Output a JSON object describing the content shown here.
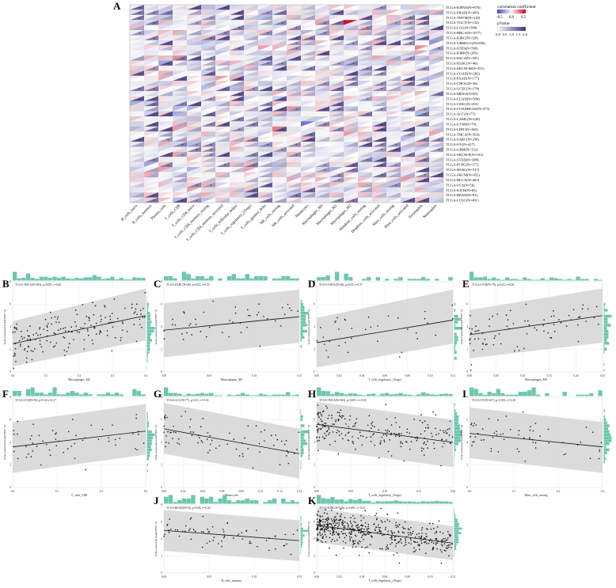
{
  "figure": {
    "panel_labels": [
      "A",
      "B",
      "C",
      "D",
      "E",
      "F",
      "G",
      "H",
      "I",
      "J",
      "K"
    ]
  },
  "chart_data": [
    {
      "type": "heatmap",
      "panel": "A",
      "row_labels": [
        "TCGA-KIPAN(N=878)",
        "TCGA-PRAD(N=495)",
        "TCGA-THYM(N=118)",
        "TCGA-TGCT(N=132)",
        "TCGA-LGG(N=508)",
        "TCGA-BRCA(N=1077)",
        "TCGA-KIRC(N=528)",
        "TCGA-GBMLGG(N=656)",
        "TCGA-STES(N=569)",
        "TCGA-KIRP(N=285)",
        "TCGA-ESCA(N=181)",
        "TCGA-DLBC(N=46)",
        "TCGA-SKCM-M(N=351)",
        "TCGA-COAD(N=282)",
        "TCGA-PAAD(N=177)",
        "TCGA-CHOL(N=36)",
        "TCGA-UCEC(N=178)",
        "TCGA-MESO(N=85)",
        "TCGA-LUAD(N=500)",
        "TCGA-CESC(N=291)",
        "TCGA-COADREAD(N=373)",
        "TCGA-ACC(N=77)",
        "TCGA-LAML(N=149)",
        "TCGA-UVM(N=79)",
        "TCGA-LIHC(N=363)",
        "TCGA-THCA(N=503)",
        "TCGA-SARC(N=258)",
        "TCGA-OV(N=417)",
        "TCGA-GBM(N=152)",
        "TCGA-SKCM-P(N=101)",
        "TCGA-STAD(N=388)",
        "TCGA-PCPG(N=177)",
        "TCGA-HNSC(N=517)",
        "TCGA-SKCM(N=452)",
        "TCGA-BLCA(N=405)",
        "TCGA-UCS(N=56)",
        "TCGA-KICH(N=65)",
        "TCGA-READ(N=91)",
        "TCGA-LUSC(N=491)"
      ],
      "column_labels": [
        "B_cells_naive",
        "B_cells_memory",
        "Plasma_cells",
        "T_cells_CD8",
        "T_cells_CD4_naive",
        "T_cells_CD4_memory_resting",
        "T_cells_CD4_memory_activated",
        "T_cells_follicular_helper",
        "T_cells_regulatory_(Tregs)",
        "T_cells_gamma_delta",
        "NK_cells_resting",
        "NK_cells_activated",
        "Monocytes",
        "Macrophages_M0",
        "Macrophages_M1",
        "Macrophages_M2",
        "Dendritic_cells_resting",
        "Dendritic_cells_activated",
        "Mast_cells_resting",
        "Mast_cells_activated",
        "Eosinophils",
        "Neutrophils"
      ],
      "legend": {
        "color_title": "correlation coefficient",
        "color_ticks": [
          "-0.5",
          "0.0",
          "0.5"
        ],
        "size_title": "pValue",
        "size_ticks": [
          "0.0",
          "0.5",
          "1.0",
          "1.5",
          "2.0"
        ]
      },
      "significance_mark": "*",
      "colors": {
        "negative": "#3b4cc0",
        "zero": "#f7f7f7",
        "positive": "#d9001b",
        "pvalue": "#3a2d7a"
      }
    },
    {
      "type": "scatter",
      "panel": "B",
      "title": "TCGA-THCA(N=503), p<0.001, r=0.40",
      "xlabel": "Macrophages_M2",
      "ylabel": "Gene expression (log2(TPM+1))",
      "xlim": [
        0,
        0.4
      ],
      "ylim": [
        0,
        8
      ],
      "xticks": [
        "0.0",
        "0.1",
        "0.2",
        "0.3",
        "0.4"
      ],
      "yticks": [
        "0",
        "2",
        "4",
        "6",
        "8"
      ],
      "fit": {
        "x": [
          0,
          0.4
        ],
        "y": [
          2.5,
          5.0
        ]
      },
      "band": {
        "x": [
          0,
          0.4
        ],
        "lower": [
          0.5,
          2.8
        ],
        "upper": [
          4.5,
          7.4
        ]
      },
      "n_points": 170
    },
    {
      "type": "scatter",
      "panel": "C",
      "title": "TCGA-DLBC(N=46), p=0.02, r=0.35",
      "xlabel": "Macrophages_M1",
      "ylabel": "Gene expression (log2(TPM+1))",
      "xlim": [
        0,
        0.15
      ],
      "ylim": [
        0,
        8
      ],
      "xticks": [
        "0.00",
        "0.05",
        "0.10",
        "0.15"
      ],
      "yticks": [
        "0",
        "2",
        "4",
        "6",
        "8"
      ],
      "fit": {
        "x": [
          0,
          0.15
        ],
        "y": [
          3.7,
          4.9
        ]
      },
      "band": {
        "x": [
          0,
          0.15
        ],
        "lower": [
          1.3,
          2.6
        ],
        "upper": [
          6.1,
          7.3
        ]
      },
      "n_points": 46
    },
    {
      "type": "scatter",
      "panel": "D",
      "title": "TCGA-CHOL(N=36), p=0.03, r=0.37",
      "xlabel": "T_cells_regulatory_(Tregs)",
      "ylabel": "Gene expression (log2(TPM+1))",
      "xlim": [
        0,
        0.12
      ],
      "ylim": [
        0,
        8
      ],
      "xticks": [
        "0.00",
        "0.02",
        "0.04",
        "0.06",
        "0.08",
        "0.10",
        "0.12"
      ],
      "yticks": [
        "0",
        "2",
        "4",
        "6",
        "8"
      ],
      "fit": {
        "x": [
          0,
          0.12
        ],
        "y": [
          2.6,
          4.6
        ]
      },
      "band": {
        "x": [
          0,
          0.12
        ],
        "lower": [
          0.4,
          2.5
        ],
        "upper": [
          4.8,
          7.3
        ]
      },
      "n_points": 36
    },
    {
      "type": "scatter",
      "panel": "E",
      "title": "TCGA-UVM(N=79), p=0.02, r=0.26",
      "xlabel": "Macrophages_M0",
      "ylabel": "Gene expression (log2(TPM+1))",
      "xlim": [
        0,
        0.25
      ],
      "ylim": [
        0,
        8
      ],
      "xticks": [
        "0.00",
        "0.05",
        "0.10",
        "0.15",
        "0.20",
        "0.25"
      ],
      "yticks": [
        "0",
        "2",
        "4",
        "6",
        "8"
      ],
      "fit": {
        "x": [
          0,
          0.25
        ],
        "y": [
          3.3,
          5.0
        ]
      },
      "band": {
        "x": [
          0,
          0.25
        ],
        "lower": [
          1.2,
          2.6
        ],
        "upper": [
          5.5,
          7.4
        ]
      },
      "n_points": 79
    },
    {
      "type": "scatter",
      "panel": "F",
      "title": "TCGA-UCS(N=56), p=0.04, r=0.27",
      "xlabel": "T_cells_CD8",
      "ylabel": "Gene expression (log2(TPM+1))",
      "xlim": [
        0,
        0.3
      ],
      "ylim": [
        0,
        8
      ],
      "xticks": [
        "0.0",
        "0.1",
        "0.2",
        "0.3"
      ],
      "yticks": [
        "0",
        "2",
        "4",
        "6",
        "8"
      ],
      "fit": {
        "x": [
          0,
          0.3
        ],
        "y": [
          3.6,
          5.0
        ]
      },
      "band": {
        "x": [
          0,
          0.3
        ],
        "lower": [
          1.3,
          2.9
        ],
        "upper": [
          5.8,
          7.4
        ]
      },
      "n_points": 56
    },
    {
      "type": "scatter",
      "panel": "G",
      "title": "TCGA-ACC(N=77), p<0.01, r=-0.30",
      "xlabel": "Monocytes",
      "ylabel": "Gene expression (log2(TPM+1))",
      "xlim": [
        0,
        0.14
      ],
      "ylim": [
        0,
        8
      ],
      "xticks": [
        "0.00",
        "0.02",
        "0.04",
        "0.06",
        "0.08",
        "0.10",
        "0.12",
        "0.14"
      ],
      "yticks": [
        "0",
        "2",
        "4",
        "6",
        "8"
      ],
      "fit": {
        "x": [
          0,
          0.14
        ],
        "y": [
          5.2,
          3.0
        ]
      },
      "band": {
        "x": [
          0,
          0.14
        ],
        "lower": [
          3.0,
          0.8
        ],
        "upper": [
          7.5,
          5.2
        ]
      },
      "n_points": 77
    },
    {
      "type": "scatter",
      "panel": "H",
      "title": "TCGA-THCA(N=503), p<0.001, r=-0.26",
      "xlabel": "T_cells_regulatory_(Tregs)",
      "ylabel": "Gene expression (log2(TPM+1))",
      "xlim": [
        0,
        0.2
      ],
      "ylim": [
        0,
        8
      ],
      "xticks": [
        "0.00",
        "0.05",
        "0.10",
        "0.15",
        "0.20"
      ],
      "yticks": [
        "0",
        "2",
        "4",
        "6",
        "8"
      ],
      "fit": {
        "x": [
          0,
          0.2
        ],
        "y": [
          5.6,
          4.0
        ]
      },
      "band": {
        "x": [
          0,
          0.2
        ],
        "lower": [
          3.4,
          1.8
        ],
        "upper": [
          7.6,
          6.0
        ]
      },
      "n_points": 220
    },
    {
      "type": "scatter",
      "panel": "I",
      "title": "TCGA-OV(N=417), p<0.001, r=-0.20",
      "xlabel": "Mast_cells_resting",
      "ylabel": "Gene expression (log2(TPM+1))",
      "xlim": [
        0,
        0.3
      ],
      "ylim": [
        0,
        8
      ],
      "xticks": [
        "0.0",
        "0.1",
        "0.2",
        "0.3"
      ],
      "yticks": [
        "0",
        "2",
        "4",
        "6",
        "8"
      ],
      "fit": {
        "x": [
          0,
          0.3
        ],
        "y": [
          4.8,
          3.6
        ]
      },
      "band": {
        "x": [
          0,
          0.3
        ],
        "lower": [
          2.6,
          1.3
        ],
        "upper": [
          7.1,
          5.8
        ]
      },
      "n_points": 60
    },
    {
      "type": "scatter",
      "panel": "J",
      "title": "TCGA-READ(N=91), p=0.04, r=-0.22",
      "xlabel": "B_cells_memory",
      "ylabel": "Gene expression (log2(TPM+1))",
      "xlim": [
        0,
        0.15
      ],
      "ylim": [
        0,
        8
      ],
      "xticks": [
        "0.00",
        "0.05",
        "0.10",
        "0.15"
      ],
      "yticks": [
        "0",
        "2",
        "4",
        "6",
        "8"
      ],
      "fit": {
        "x": [
          0,
          0.15
        ],
        "y": [
          5.0,
          3.8
        ]
      },
      "band": {
        "x": [
          0,
          0.15
        ],
        "lower": [
          2.6,
          1.4
        ],
        "upper": [
          7.4,
          6.2
        ]
      },
      "n_points": 70
    },
    {
      "type": "scatter",
      "panel": "K",
      "title": "TCGA-KIRC(N=528), p<0.001, r=-0.31",
      "xlabel": "T_cells_regulatory_(Tregs)",
      "ylabel": "Gene expression (log2(TPM+1))",
      "xlim": [
        0,
        0.12
      ],
      "ylim": [
        0,
        8
      ],
      "xticks": [
        "0.00",
        "0.02",
        "0.04",
        "0.06",
        "0.08",
        "0.10",
        "0.12"
      ],
      "yticks": [
        "0",
        "2",
        "4",
        "6",
        "8"
      ],
      "fit": {
        "x": [
          0,
          0.12
        ],
        "y": [
          5.6,
          3.5
        ]
      },
      "band": {
        "x": [
          0,
          0.12
        ],
        "lower": [
          3.6,
          1.5
        ],
        "upper": [
          7.6,
          5.5
        ]
      },
      "n_points": 500
    }
  ]
}
